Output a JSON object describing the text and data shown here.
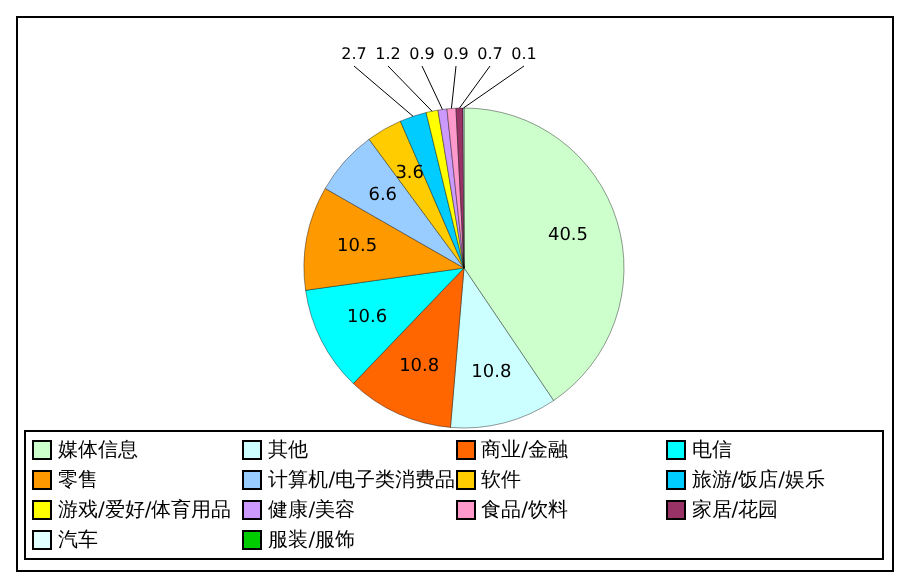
{
  "chart_data": {
    "type": "pie",
    "categories": [
      "媒体信息",
      "其他",
      "商业/金融",
      "电信",
      "零售",
      "计算机/电子类消费品",
      "软件",
      "旅游/饭店/娱乐",
      "游戏/爱好/体育用品",
      "健康/美容",
      "食品/饮料",
      "家居/花园",
      "汽车",
      "服装/服饰"
    ],
    "values": [
      40.5,
      10.8,
      10.8,
      10.6,
      10.5,
      6.6,
      3.6,
      2.7,
      1.2,
      0.9,
      0.9,
      0.7,
      0.1,
      null
    ],
    "colors": [
      "#ccffcc",
      "#ccffff",
      "#ff6600",
      "#00ffff",
      "#ff9900",
      "#99ccff",
      "#ffcc00",
      "#00ccff",
      "#ffff00",
      "#cc99ff",
      "#ff99cc",
      "#993366",
      "#e0ffff",
      "#00cc00"
    ],
    "data_labels": true,
    "legend": "bottom"
  }
}
